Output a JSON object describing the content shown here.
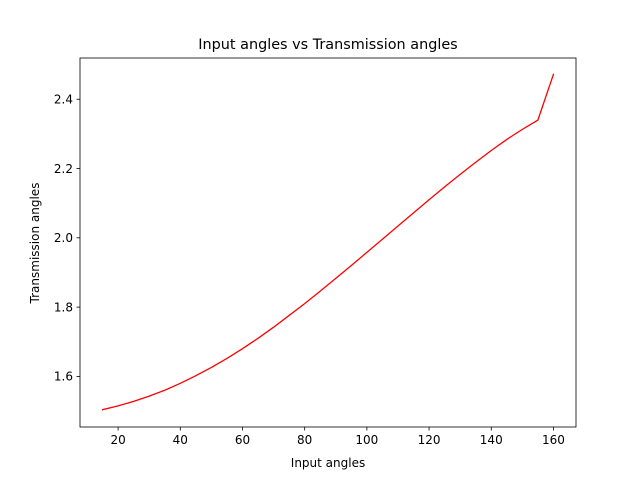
{
  "chart_data": {
    "type": "line",
    "title": "Input angles vs Transmission angles",
    "xlabel": "Input angles",
    "ylabel": "Transmission angles",
    "xlim": [
      7.75,
      167.25
    ],
    "ylim": [
      1.454,
      2.519
    ],
    "xticks": [
      20,
      40,
      60,
      80,
      100,
      120,
      140,
      160
    ],
    "yticks": [
      1.6,
      1.8,
      2.0,
      2.2,
      2.4
    ],
    "xtick_labels": [
      "20",
      "40",
      "60",
      "80",
      "100",
      "120",
      "140",
      "160"
    ],
    "ytick_labels": [
      "1.6",
      "1.8",
      "2.0",
      "2.2",
      "2.4"
    ],
    "grid": false,
    "legend": "none",
    "series": [
      {
        "color": "#ff0000",
        "x": [
          15,
          20,
          25,
          30,
          35,
          40,
          45,
          50,
          55,
          60,
          65,
          70,
          75,
          80,
          85,
          90,
          95,
          100,
          105,
          110,
          115,
          120,
          125,
          130,
          135,
          140,
          145,
          150,
          155,
          160
        ],
        "y": [
          1.504,
          1.515,
          1.528,
          1.543,
          1.56,
          1.58,
          1.602,
          1.626,
          1.652,
          1.68,
          1.71,
          1.742,
          1.776,
          1.81,
          1.846,
          1.883,
          1.92,
          1.958,
          1.996,
          2.034,
          2.072,
          2.11,
          2.147,
          2.183,
          2.218,
          2.252,
          2.284,
          2.313,
          2.34,
          2.472
        ]
      }
    ]
  }
}
